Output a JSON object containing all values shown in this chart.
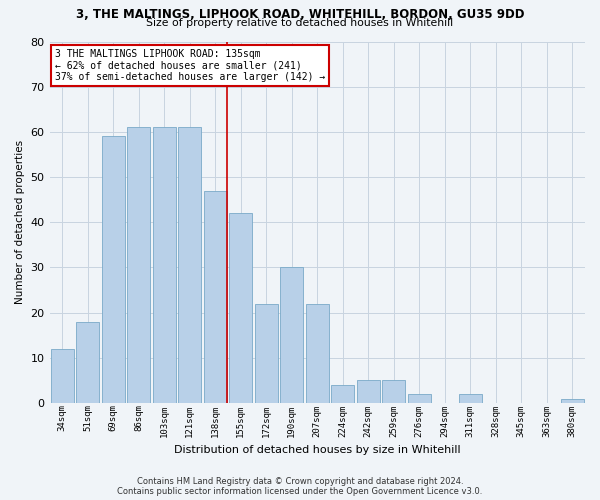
{
  "title": "3, THE MALTINGS, LIPHOOK ROAD, WHITEHILL, BORDON, GU35 9DD",
  "subtitle": "Size of property relative to detached houses in Whitehill",
  "xlabel": "Distribution of detached houses by size in Whitehill",
  "ylabel": "Number of detached properties",
  "categories": [
    "34sqm",
    "51sqm",
    "69sqm",
    "86sqm",
    "103sqm",
    "121sqm",
    "138sqm",
    "155sqm",
    "172sqm",
    "190sqm",
    "207sqm",
    "224sqm",
    "242sqm",
    "259sqm",
    "276sqm",
    "294sqm",
    "311sqm",
    "328sqm",
    "345sqm",
    "363sqm",
    "380sqm"
  ],
  "values": [
    12,
    18,
    59,
    61,
    61,
    61,
    47,
    42,
    22,
    30,
    22,
    4,
    5,
    5,
    2,
    0,
    2,
    0,
    0,
    0,
    1
  ],
  "bar_color": "#b8d0e8",
  "bar_edge_color": "#7aaac8",
  "ref_line_index": 6,
  "annotation_text": "3 THE MALTINGS LIPHOOK ROAD: 135sqm\n← 62% of detached houses are smaller (241)\n37% of semi-detached houses are larger (142) →",
  "annotation_box_color": "#ffffff",
  "annotation_box_edge_color": "#cc0000",
  "ref_line_color": "#cc0000",
  "background_color": "#f0f4f8",
  "grid_color": "#c8d4e0",
  "ylim": [
    0,
    80
  ],
  "yticks": [
    0,
    10,
    20,
    30,
    40,
    50,
    60,
    70,
    80
  ],
  "footer_line1": "Contains HM Land Registry data © Crown copyright and database right 2024.",
  "footer_line2": "Contains public sector information licensed under the Open Government Licence v3.0."
}
